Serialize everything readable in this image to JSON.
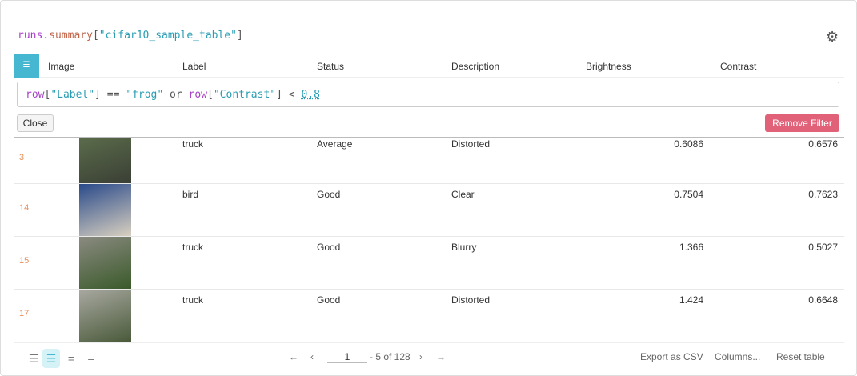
{
  "title": {
    "p1": "runs",
    "p2": ".",
    "p3": "summary",
    "p4": "[",
    "p5": "\"cifar10_sample_table\"",
    "p6": "]"
  },
  "header": {
    "columns": [
      "Image",
      "Label",
      "Status",
      "Description",
      "Brightness",
      "Contrast"
    ]
  },
  "filter": {
    "t1": "row",
    "t2": "[",
    "t3": "\"Label\"",
    "t4": "] == ",
    "t5": "\"frog\"",
    "t6": " or ",
    "t7": "row",
    "t8": "[",
    "t9": "\"Contrast\"",
    "t10": "] < ",
    "t11": "0.8",
    "close_label": "Close",
    "remove_label": "Remove Filter"
  },
  "rows": [
    {
      "index": "3",
      "label": "truck",
      "status": "Average",
      "description": "Distorted",
      "brightness": "0.6086",
      "contrast": "0.6576",
      "colors": [
        "#5a6b4a",
        "#3a3f35"
      ]
    },
    {
      "index": "14",
      "label": "bird",
      "status": "Good",
      "description": "Clear",
      "brightness": "0.7504",
      "contrast": "0.7623",
      "colors": [
        "#2a4a8a",
        "#d8d0c0"
      ]
    },
    {
      "index": "15",
      "label": "truck",
      "status": "Good",
      "description": "Blurry",
      "brightness": "1.366",
      "contrast": "0.5027",
      "colors": [
        "#8a8a80",
        "#3a5a2a"
      ]
    },
    {
      "index": "17",
      "label": "truck",
      "status": "Good",
      "description": "Distorted",
      "brightness": "1.424",
      "contrast": "0.6648",
      "colors": [
        "#a8a8a0",
        "#4a5a3a"
      ]
    }
  ],
  "footer": {
    "page": "1",
    "range": "- 5 of 128",
    "export": "Export as CSV",
    "columns": "Columns...",
    "reset": "Reset table"
  },
  "icons": {
    "gear": "gear-icon",
    "filter": "filter-icon"
  },
  "colors": {
    "accent": "#45b7d1",
    "remove": "#e06178",
    "row_index": "#e6915a"
  }
}
